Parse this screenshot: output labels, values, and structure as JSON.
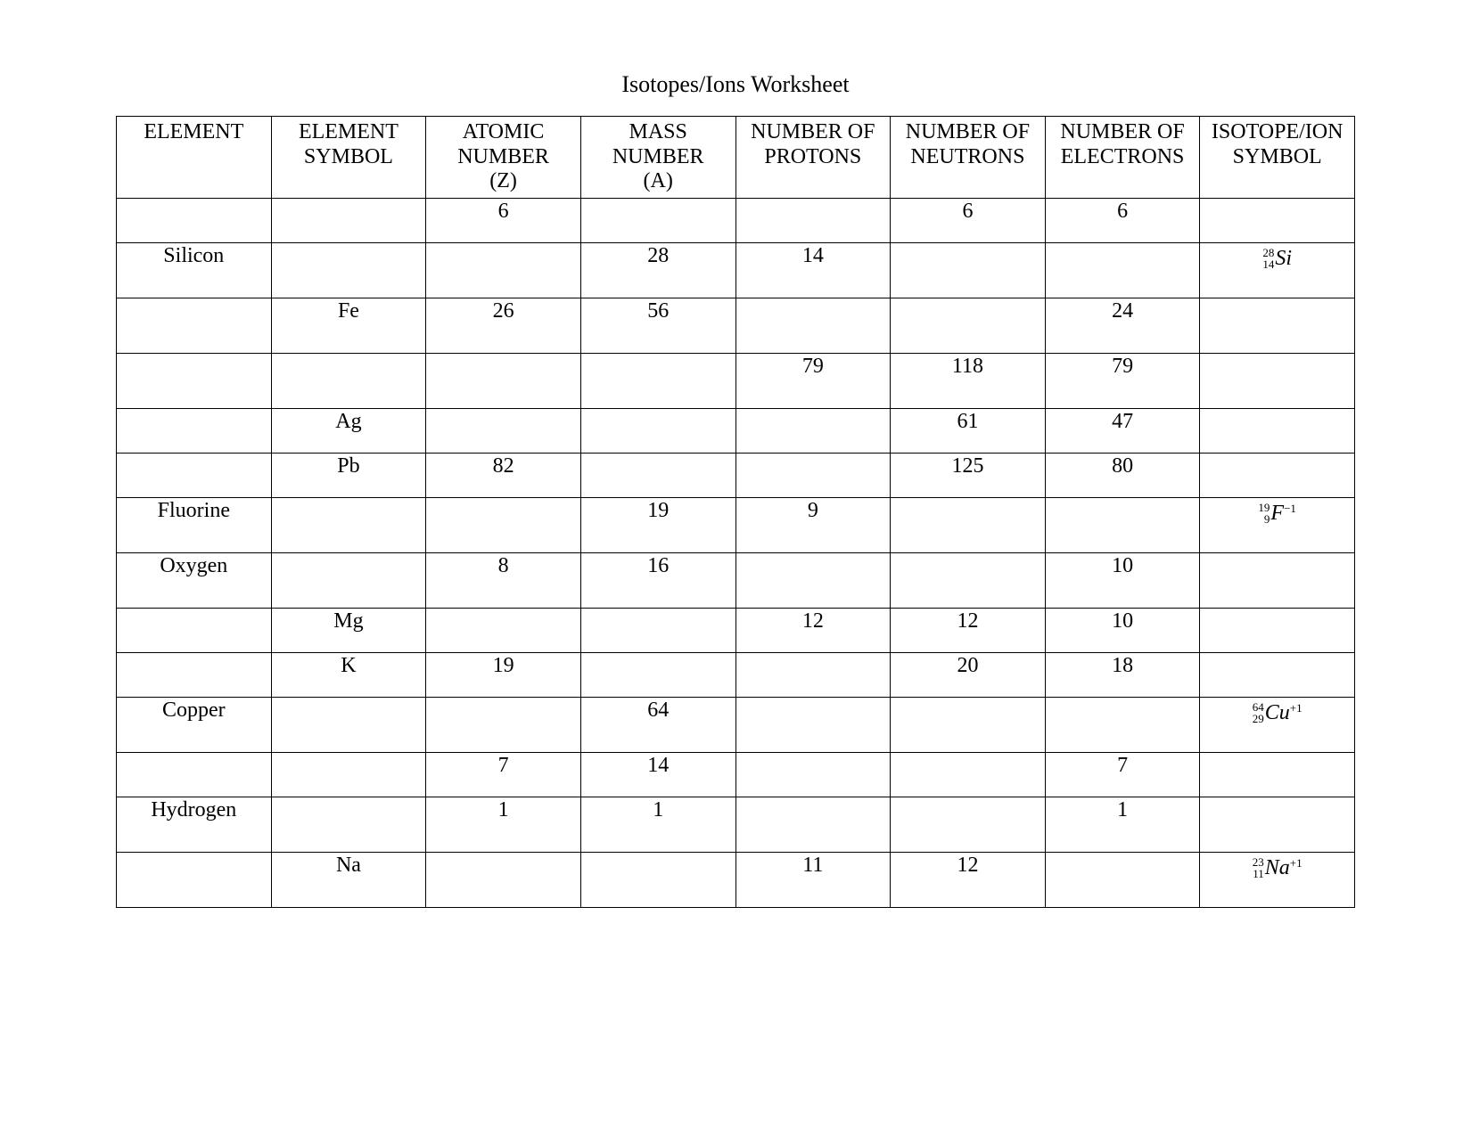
{
  "title": "Isotopes/Ions Worksheet",
  "table": {
    "border_color": "#000000",
    "background_color": "#ffffff",
    "text_color": "#000000",
    "font_family": "Times New Roman",
    "header_fontsize": 24,
    "cell_fontsize": 24,
    "iso_script_fontsize": 13,
    "columns": [
      {
        "label_line1": "ELEMENT",
        "label_line2": "",
        "label_line3": ""
      },
      {
        "label_line1": "ELEMENT",
        "label_line2": "SYMBOL",
        "label_line3": ""
      },
      {
        "label_line1": "ATOMIC",
        "label_line2": "NUMBER",
        "label_line3": "(Z)"
      },
      {
        "label_line1": "MASS",
        "label_line2": "NUMBER",
        "label_line3": "(A)"
      },
      {
        "label_line1": "NUMBER OF",
        "label_line2": "PROTONS",
        "label_line3": ""
      },
      {
        "label_line1": "NUMBER OF",
        "label_line2": "NEUTRONS",
        "label_line3": ""
      },
      {
        "label_line1": "NUMBER OF",
        "label_line2": "ELECTRONS",
        "label_line3": ""
      },
      {
        "label_line1": "ISOTOPE/ION",
        "label_line2": "SYMBOL",
        "label_line3": ""
      }
    ],
    "rows": [
      {
        "height": "short",
        "element": "",
        "symbol": "",
        "Z": "6",
        "A": "",
        "protons": "",
        "neutrons": "6",
        "electrons": "6",
        "iso": null
      },
      {
        "height": "tall",
        "element": "Silicon",
        "symbol": "",
        "Z": "",
        "A": "28",
        "protons": "14",
        "neutrons": "",
        "electrons": "",
        "iso": {
          "mass": "28",
          "z": "14",
          "sym": "Si",
          "charge": ""
        }
      },
      {
        "height": "tall",
        "element": "",
        "symbol": "Fe",
        "Z": "26",
        "A": "56",
        "protons": "",
        "neutrons": "",
        "electrons": "24",
        "iso": null
      },
      {
        "height": "tall",
        "element": "",
        "symbol": "",
        "Z": "",
        "A": "",
        "protons": "79",
        "neutrons": "118",
        "electrons": "79",
        "iso": null
      },
      {
        "height": "short",
        "element": "",
        "symbol": "Ag",
        "Z": "",
        "A": "",
        "protons": "",
        "neutrons": "61",
        "electrons": "47",
        "iso": null
      },
      {
        "height": "short",
        "element": "",
        "symbol": "Pb",
        "Z": "82",
        "A": "",
        "protons": "",
        "neutrons": "125",
        "electrons": "80",
        "iso": null
      },
      {
        "height": "tall",
        "element": "Fluorine",
        "symbol": "",
        "Z": "",
        "A": "19",
        "protons": "9",
        "neutrons": "",
        "electrons": "",
        "iso": {
          "mass": "19",
          "z": "9",
          "sym": "F",
          "charge": "−1"
        }
      },
      {
        "height": "tall",
        "element": "Oxygen",
        "symbol": "",
        "Z": "8",
        "A": "16",
        "protons": "",
        "neutrons": "",
        "electrons": "10",
        "iso": null
      },
      {
        "height": "short",
        "element": "",
        "symbol": "Mg",
        "Z": "",
        "A": "",
        "protons": "12",
        "neutrons": "12",
        "electrons": "10",
        "iso": null
      },
      {
        "height": "short",
        "element": "",
        "symbol": "K",
        "Z": "19",
        "A": "",
        "protons": "",
        "neutrons": "20",
        "electrons": "18",
        "iso": null
      },
      {
        "height": "tall",
        "element": "Copper",
        "symbol": "",
        "Z": "",
        "A": "64",
        "protons": "",
        "neutrons": "",
        "electrons": "",
        "iso": {
          "mass": "64",
          "z": "29",
          "sym": "Cu",
          "charge": "+1"
        }
      },
      {
        "height": "short",
        "element": "",
        "symbol": "",
        "Z": "7",
        "A": "14",
        "protons": "",
        "neutrons": "",
        "electrons": "7",
        "iso": null
      },
      {
        "height": "tall",
        "element": "Hydrogen",
        "symbol": "",
        "Z": "1",
        "A": "1",
        "protons": "",
        "neutrons": "",
        "electrons": "1",
        "iso": null
      },
      {
        "height": "tall",
        "element": "",
        "symbol": "Na",
        "Z": "",
        "A": "",
        "protons": "11",
        "neutrons": "12",
        "electrons": "",
        "iso": {
          "mass": "23",
          "z": "11",
          "sym": "Na",
          "charge": "+1"
        }
      }
    ]
  }
}
